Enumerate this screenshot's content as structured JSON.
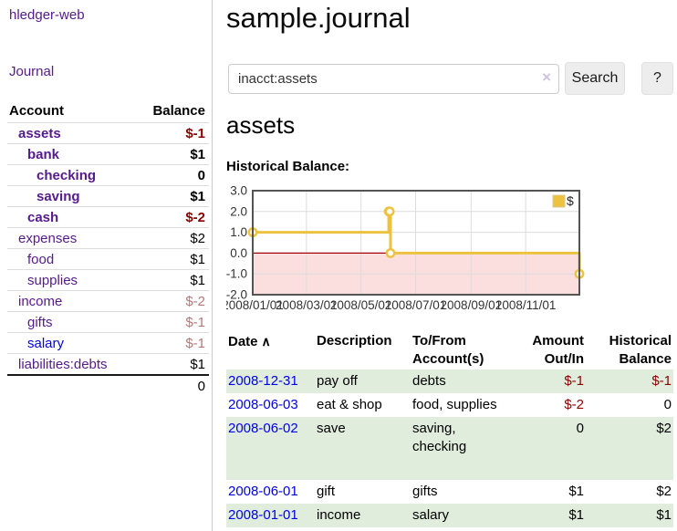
{
  "sidebar": {
    "brand": "hledger-web",
    "nav": {
      "journal": "Journal"
    },
    "accounts_table": {
      "col_account": "Account",
      "col_balance": "Balance",
      "rows": [
        {
          "name": "assets",
          "balance": "$-1"
        },
        {
          "name": "bank",
          "balance": "$1"
        },
        {
          "name": "checking",
          "balance": "0"
        },
        {
          "name": "saving",
          "balance": "$1"
        },
        {
          "name": "cash",
          "balance": "$-2"
        },
        {
          "name": "expenses",
          "balance": "$2"
        },
        {
          "name": "food",
          "balance": "$1"
        },
        {
          "name": "supplies",
          "balance": "$1"
        },
        {
          "name": "income",
          "balance": "$-2"
        },
        {
          "name": "gifts",
          "balance": "$-1"
        },
        {
          "name": "salary",
          "balance": "$-1"
        },
        {
          "name": "liabilities:debts",
          "balance": "$1"
        }
      ],
      "total": "0"
    }
  },
  "header": {
    "title": "sample.journal"
  },
  "search": {
    "value": "inacct:assets",
    "clear_icon": "×",
    "button_label": "Search",
    "help_label": "?"
  },
  "main": {
    "account_title": "assets",
    "chart_label": "Historical Balance:"
  },
  "chart_data": {
    "type": "line",
    "title": "Historical Balance:",
    "series": [
      {
        "name": "$",
        "color": "#edc240",
        "step": true,
        "points": [
          [
            "2008-01-01",
            1
          ],
          [
            "2008-06-01",
            2
          ],
          [
            "2008-06-02",
            2
          ],
          [
            "2008-06-03",
            0
          ],
          [
            "2008-12-31",
            -1
          ]
        ]
      }
    ],
    "xlim": [
      "2008-01-01",
      "2008-12-31"
    ],
    "ylim": [
      -2,
      3
    ],
    "yticks": [
      {
        "v": 3,
        "label": "3.0"
      },
      {
        "v": 2,
        "label": "2.0"
      },
      {
        "v": 1,
        "label": "1.0"
      },
      {
        "v": 0,
        "label": "0.0"
      },
      {
        "v": -1,
        "label": "-1.0"
      },
      {
        "v": -2,
        "label": "-2.0"
      }
    ],
    "xticks": [
      {
        "d": "2008-01-01",
        "label": "2008/01/01"
      },
      {
        "d": "2008-03-01",
        "label": "2008/03/01"
      },
      {
        "d": "2008-05-01",
        "label": "2008/05/01"
      },
      {
        "d": "2008-07-01",
        "label": "2008/07/01"
      },
      {
        "d": "2008-09-01",
        "label": "2008/09/01"
      },
      {
        "d": "2008-11-01",
        "label": "2008/11/01"
      }
    ],
    "colors": {
      "negative_fill": "#fbdfdf",
      "zero_line": "#a40000",
      "grid": "#dcdcdc",
      "border": "#545454"
    },
    "legend_position": "top-right",
    "grid": true
  },
  "register": {
    "columns": {
      "date": "Date",
      "sort_indicator": "∧",
      "description": "Description",
      "tofrom_line1": "To/From",
      "tofrom_line2": "Account(s)",
      "amount_line1": "Amount",
      "amount_line2": "Out/In",
      "balance_line1": "Historical",
      "balance_line2": "Balance"
    },
    "rows": [
      {
        "date": "2008-12-31",
        "description": "pay off",
        "accounts_line1": "debts",
        "accounts_line2": "",
        "amount": "$-1",
        "balance": "$-1"
      },
      {
        "date": "2008-06-03",
        "description": "eat & shop",
        "accounts_line1": "food, supplies",
        "accounts_line2": "",
        "amount": "$-2",
        "balance": "0"
      },
      {
        "date": "2008-06-02",
        "description": "save",
        "accounts_line1": "saving,",
        "accounts_line2": "checking",
        "amount": "0",
        "balance": "$2"
      },
      {
        "date": "2008-06-01",
        "description": "gift",
        "accounts_line1": "gifts",
        "accounts_line2": "",
        "amount": "$1",
        "balance": "$2"
      },
      {
        "date": "2008-01-01",
        "description": "income",
        "accounts_line1": "salary",
        "accounts_line2": "",
        "amount": "$1",
        "balance": "$1"
      }
    ]
  }
}
